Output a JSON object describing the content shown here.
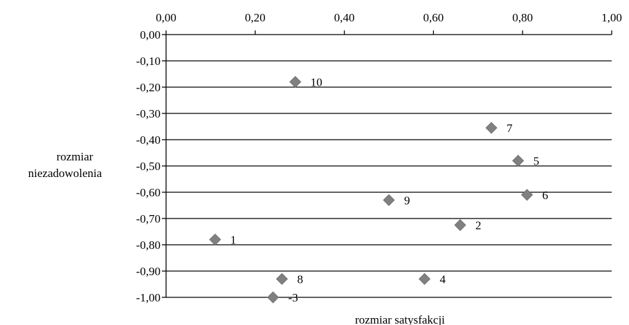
{
  "chart_data": {
    "type": "scatter",
    "xlabel": "rozmiar satysfakcji",
    "ylabel_lines": [
      "rozmiar",
      "niezadowolenia"
    ],
    "xlim": [
      0,
      1
    ],
    "ylim": [
      -1,
      0
    ],
    "grid": "horizontal",
    "x_axis_position": "top",
    "marker": "diamond",
    "marker_color": "#808080",
    "x_ticks": [
      "0,00",
      "0,20",
      "0,40",
      "0,60",
      "0,80",
      "1,00"
    ],
    "y_ticks": [
      "0,00",
      "-0,10",
      "-0,20",
      "-0,30",
      "-0,40",
      "-0,50",
      "-0,60",
      "-0,70",
      "-0,80",
      "-0,90",
      "-1,00"
    ],
    "points": [
      {
        "label": "1",
        "x": 0.11,
        "y": -0.78
      },
      {
        "label": "2",
        "x": 0.66,
        "y": -0.725
      },
      {
        "label": "-3",
        "x": 0.24,
        "y": -1.0
      },
      {
        "label": "4",
        "x": 0.58,
        "y": -0.93
      },
      {
        "label": "5",
        "x": 0.79,
        "y": -0.48
      },
      {
        "label": "6",
        "x": 0.81,
        "y": -0.61
      },
      {
        "label": "7",
        "x": 0.73,
        "y": -0.355
      },
      {
        "label": "8",
        "x": 0.26,
        "y": -0.93
      },
      {
        "label": "9",
        "x": 0.5,
        "y": -0.63
      },
      {
        "label": "10",
        "x": 0.29,
        "y": -0.18
      }
    ]
  }
}
